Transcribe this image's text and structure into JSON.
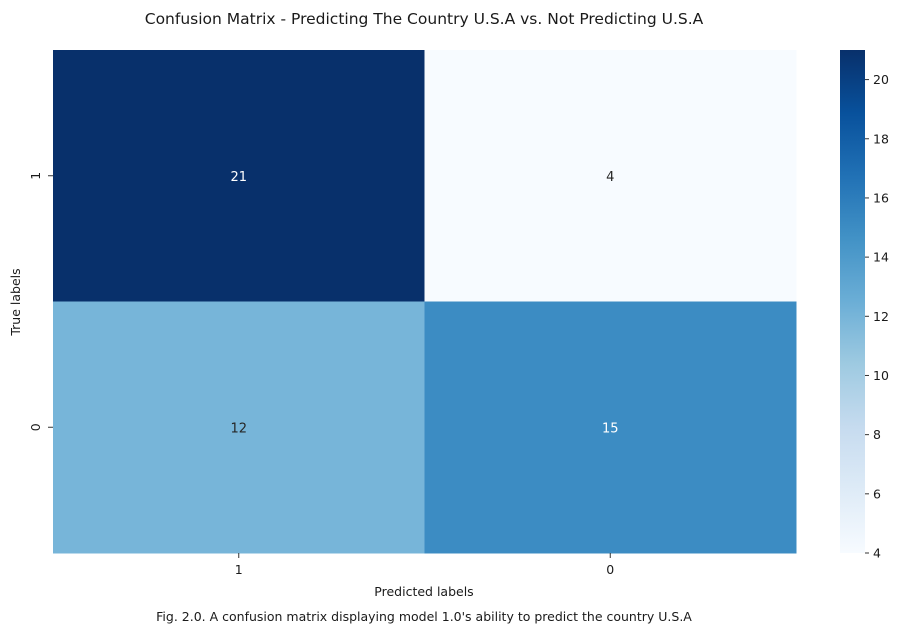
{
  "chart_data": {
    "type": "heatmap",
    "title": "Confusion Matrix - Predicting The Country U.S.A vs. Not Predicting U.S.A",
    "xlabel": "Predicted labels",
    "ylabel": "True labels",
    "x_categories": [
      "1",
      "0"
    ],
    "y_categories": [
      "1",
      "0"
    ],
    "values": [
      [
        21,
        4
      ],
      [
        12,
        15
      ]
    ],
    "colormap": "Blues",
    "colorbar": {
      "range": [
        4,
        21
      ],
      "ticks": [
        4,
        6,
        8,
        10,
        12,
        14,
        16,
        18,
        20
      ]
    },
    "annotations": true
  },
  "caption": "Fig. 2.0. A confusion matrix displaying model 1.0's ability to predict the country U.S.A"
}
